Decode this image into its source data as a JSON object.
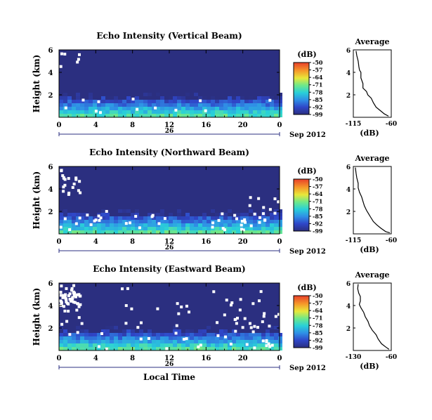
{
  "chart_data": [
    {
      "type": "heatmap",
      "title": "Echo Intensity (Vertical Beam)",
      "ylabel": "Height (km)",
      "xlabel": "",
      "x_ticks": [
        "0",
        "4",
        "8",
        "12",
        "16",
        "20",
        "0"
      ],
      "y_ticks": [
        "6",
        "4",
        "2"
      ],
      "date_day": "26",
      "date_label": "Sep 2012",
      "xlim": [
        0,
        24
      ],
      "ylim": [
        0,
        6
      ],
      "colorbar": {
        "unit": "(dB)",
        "ticks": [
          "-50",
          "-57",
          "-64",
          "-71",
          "-78",
          "-85",
          "-92",
          "-99"
        ],
        "range": [
          -99,
          -50
        ]
      },
      "background_value": -99,
      "profile": {
        "title": "Average",
        "xlabel": "(dB)",
        "x_ticks": [
          "-115",
          "-60"
        ],
        "y_ticks": [
          "6",
          "4",
          "2"
        ],
        "xlim": [
          -115,
          -60
        ],
        "ylim": [
          0,
          6
        ],
        "points": [
          [
            -111,
            5.9
          ],
          [
            -110,
            5.5
          ],
          [
            -108,
            5.0
          ],
          [
            -107,
            4.5
          ],
          [
            -106,
            4.2
          ],
          [
            -104,
            4.0
          ],
          [
            -104,
            3.5
          ],
          [
            -101,
            3.0
          ],
          [
            -101,
            2.6
          ],
          [
            -96,
            2.3
          ],
          [
            -94,
            2.0
          ],
          [
            -89,
            1.7
          ],
          [
            -86,
            1.3
          ],
          [
            -82,
            0.9
          ],
          [
            -76,
            0.6
          ],
          [
            -70,
            0.3
          ],
          [
            -64,
            0.1
          ]
        ]
      }
    },
    {
      "type": "heatmap",
      "title": "Echo Intensity (Northward Beam)",
      "ylabel": "Height (km)",
      "xlabel": "",
      "x_ticks": [
        "0",
        "4",
        "8",
        "12",
        "16",
        "20",
        "0"
      ],
      "y_ticks": [
        "6",
        "4",
        "2"
      ],
      "date_day": "26",
      "date_label": "Sep 2012",
      "xlim": [
        0,
        24
      ],
      "ylim": [
        0,
        6
      ],
      "colorbar": {
        "unit": "(dB)",
        "ticks": [
          "-50",
          "-57",
          "-64",
          "-71",
          "-78",
          "-85",
          "-92",
          "-99"
        ],
        "range": [
          -99,
          -50
        ]
      },
      "background_value": -99,
      "profile": {
        "title": "Average",
        "xlabel": "(dB)",
        "x_ticks": [
          "-115",
          "-60"
        ],
        "y_ticks": [
          "6",
          "4",
          "2"
        ],
        "xlim": [
          -115,
          -60
        ],
        "ylim": [
          0,
          6
        ],
        "points": [
          [
            -112,
            5.9
          ],
          [
            -111,
            5.4
          ],
          [
            -110,
            5.0
          ],
          [
            -108,
            4.5
          ],
          [
            -108,
            4.1
          ],
          [
            -106,
            3.7
          ],
          [
            -103,
            3.3
          ],
          [
            -101,
            2.9
          ],
          [
            -99,
            2.5
          ],
          [
            -96,
            2.1
          ],
          [
            -93,
            1.8
          ],
          [
            -90,
            1.5
          ],
          [
            -86,
            1.1
          ],
          [
            -81,
            0.8
          ],
          [
            -75,
            0.5
          ],
          [
            -68,
            0.2
          ],
          [
            -62,
            0.1
          ]
        ]
      }
    },
    {
      "type": "heatmap",
      "title": "Echo Intensity (Eastward Beam)",
      "ylabel": "Height (km)",
      "xlabel": "Local Time",
      "x_ticks": [
        "0",
        "4",
        "8",
        "12",
        "16",
        "20",
        "0"
      ],
      "y_ticks": [
        "6",
        "4",
        "2"
      ],
      "date_day": "26",
      "date_label": "Sep 2012",
      "xlim": [
        0,
        24
      ],
      "ylim": [
        0,
        6
      ],
      "colorbar": {
        "unit": "(dB)",
        "ticks": [
          "-50",
          "-57",
          "-64",
          "-71",
          "-78",
          "-85",
          "-92",
          "-99"
        ],
        "range": [
          -99,
          -50
        ]
      },
      "background_value": -99,
      "profile": {
        "title": "Average",
        "xlabel": "(dB)",
        "x_ticks": [
          "-130",
          "-60"
        ],
        "y_ticks": [
          "6",
          "4",
          "2"
        ],
        "xlim": [
          -130,
          -60
        ],
        "ylim": [
          0,
          6
        ],
        "points": [
          [
            -121,
            5.9
          ],
          [
            -122,
            5.5
          ],
          [
            -120,
            5.1
          ],
          [
            -117,
            4.8
          ],
          [
            -117,
            4.4
          ],
          [
            -119,
            4.1
          ],
          [
            -116,
            3.8
          ],
          [
            -111,
            3.4
          ],
          [
            -108,
            3.0
          ],
          [
            -103,
            2.6
          ],
          [
            -100,
            2.2
          ],
          [
            -95,
            1.8
          ],
          [
            -88,
            1.4
          ],
          [
            -84,
            1.0
          ],
          [
            -78,
            0.6
          ],
          [
            -70,
            0.3
          ],
          [
            -64,
            0.1
          ]
        ]
      }
    }
  ]
}
